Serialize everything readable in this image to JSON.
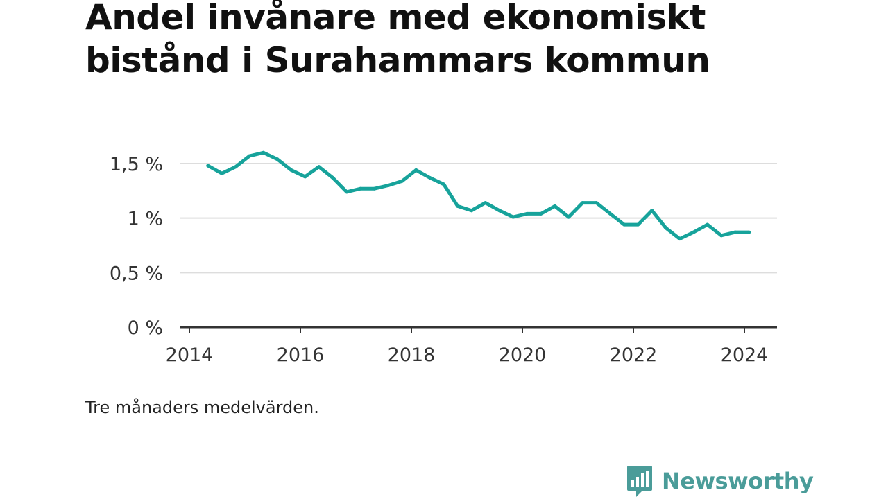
{
  "title": "Andel invånare med ekonomiskt bistånd i Surahammars kommun",
  "note": "Tre månaders medelvärden.",
  "brand": {
    "name": "Newsworthy",
    "icon": "bar-chart-speech-bubble-icon",
    "color": "#4a9c99"
  },
  "colors": {
    "line": "#17a39b",
    "grid": "#dddddd",
    "axis": "#333333",
    "text": "#111111"
  },
  "chart_data": {
    "type": "line",
    "title": "Andel invånare med ekonomiskt bistånd i Surahammars kommun",
    "xlabel": "",
    "ylabel": "",
    "x_tick_labels": [
      "2014",
      "2016",
      "2018",
      "2020",
      "2022",
      "2024"
    ],
    "y_tick_labels": [
      "0 %",
      "0,5 %",
      "1 %",
      "1,5 %"
    ],
    "y_ticks": [
      0,
      0.5,
      1,
      1.5
    ],
    "ylim": [
      0,
      1.75
    ],
    "xlim": [
      "2014-01",
      "2024-12"
    ],
    "grid": true,
    "legend": "none",
    "series": [
      {
        "values": [
          {
            "x": "2014-05",
            "y": 1.48
          },
          {
            "x": "2014-08",
            "y": 1.41
          },
          {
            "x": "2014-11",
            "y": 1.47
          },
          {
            "x": "2015-02",
            "y": 1.57
          },
          {
            "x": "2015-05",
            "y": 1.6
          },
          {
            "x": "2015-08",
            "y": 1.54
          },
          {
            "x": "2015-11",
            "y": 1.44
          },
          {
            "x": "2016-02",
            "y": 1.38
          },
          {
            "x": "2016-05",
            "y": 1.47
          },
          {
            "x": "2016-08",
            "y": 1.37
          },
          {
            "x": "2016-11",
            "y": 1.24
          },
          {
            "x": "2017-02",
            "y": 1.27
          },
          {
            "x": "2017-05",
            "y": 1.27
          },
          {
            "x": "2017-08",
            "y": 1.3
          },
          {
            "x": "2017-11",
            "y": 1.34
          },
          {
            "x": "2018-02",
            "y": 1.44
          },
          {
            "x": "2018-05",
            "y": 1.37
          },
          {
            "x": "2018-08",
            "y": 1.31
          },
          {
            "x": "2018-11",
            "y": 1.11
          },
          {
            "x": "2019-02",
            "y": 1.07
          },
          {
            "x": "2019-05",
            "y": 1.14
          },
          {
            "x": "2019-08",
            "y": 1.07
          },
          {
            "x": "2019-11",
            "y": 1.01
          },
          {
            "x": "2020-02",
            "y": 1.04
          },
          {
            "x": "2020-05",
            "y": 1.04
          },
          {
            "x": "2020-08",
            "y": 1.11
          },
          {
            "x": "2020-11",
            "y": 1.01
          },
          {
            "x": "2021-02",
            "y": 1.14
          },
          {
            "x": "2021-05",
            "y": 1.14
          },
          {
            "x": "2021-08",
            "y": 1.04
          },
          {
            "x": "2021-11",
            "y": 0.94
          },
          {
            "x": "2022-02",
            "y": 0.94
          },
          {
            "x": "2022-05",
            "y": 1.07
          },
          {
            "x": "2022-08",
            "y": 0.91
          },
          {
            "x": "2022-11",
            "y": 0.81
          },
          {
            "x": "2023-02",
            "y": 0.87
          },
          {
            "x": "2023-05",
            "y": 0.94
          },
          {
            "x": "2023-08",
            "y": 0.84
          },
          {
            "x": "2023-11",
            "y": 0.87
          },
          {
            "x": "2024-02",
            "y": 0.87
          }
        ]
      }
    ]
  }
}
